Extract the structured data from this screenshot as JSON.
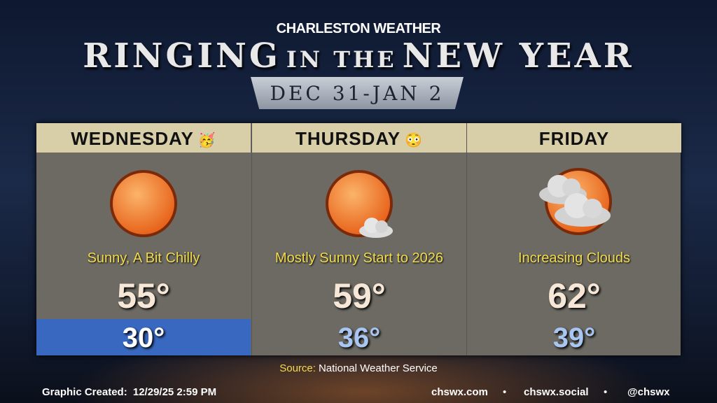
{
  "header": {
    "brand": "CHARLESTON WEATHER",
    "title_parts": [
      "RINGING",
      "IN THE",
      "NEW YEAR"
    ],
    "dates": "DEC 31-JAN 2"
  },
  "days": [
    {
      "name": "WEDNESDAY",
      "emoji": "🥳",
      "condition": "Sunny, A Bit Chilly",
      "high": "55°",
      "low": "30°"
    },
    {
      "name": "THURSDAY",
      "emoji": "😳",
      "condition": "Mostly Sunny Start to 2026",
      "high": "59°",
      "low": "36°"
    },
    {
      "name": "FRIDAY",
      "emoji": null,
      "condition": "Increasing Clouds",
      "high": "62°",
      "low": "39°"
    }
  ],
  "source": {
    "label": "Source:",
    "text": "National Weather Service"
  },
  "footer": {
    "created_label": "Graphic Created:",
    "created": "12/29/25 2:59 PM",
    "links": [
      "chswx.com",
      "chswx.social",
      "@chswx"
    ]
  }
}
